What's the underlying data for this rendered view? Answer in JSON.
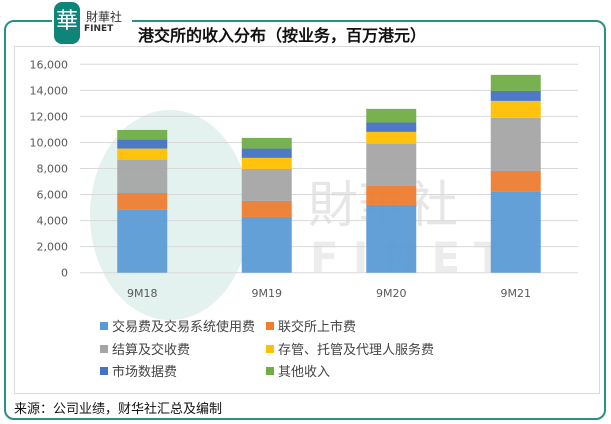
{
  "logo": {
    "cn": "財華社",
    "en": "FINET",
    "mark": "華"
  },
  "watermark": {
    "cn": "財華社",
    "en": "FINET"
  },
  "chart_data": {
    "type": "bar",
    "stacked": true,
    "title": "港交所的收入分布（按业务，百万港元）",
    "categories": [
      "9M18",
      "9M19",
      "9M20",
      "9M21"
    ],
    "ylim": [
      0,
      16000
    ],
    "yticks": [
      "0",
      "2,000",
      "4,000",
      "6,000",
      "8,000",
      "10,000",
      "12,000",
      "14,000",
      "16,000"
    ],
    "grid": true,
    "legend_position": "bottom",
    "series": [
      {
        "name": "交易费及交易系统使用费",
        "color": "#5b9bd5",
        "values": [
          4840,
          4280,
          5200,
          6200
        ]
      },
      {
        "name": "联交所上市费",
        "color": "#ed7d31",
        "values": [
          1280,
          1230,
          1460,
          1610
        ]
      },
      {
        "name": "结算及交收费",
        "color": "#a5a5a5",
        "values": [
          2560,
          2460,
          3250,
          4070
        ]
      },
      {
        "name": "存管、托管及代理人服务费",
        "color": "#ffc000",
        "values": [
          850,
          845,
          900,
          1310
        ]
      },
      {
        "name": "市场数据费",
        "color": "#4472c4",
        "values": [
          690,
          717,
          720,
          770
        ]
      },
      {
        "name": "其他收入",
        "color": "#70ad47",
        "values": [
          740,
          820,
          1050,
          1230
        ]
      }
    ]
  },
  "source": "来源：公司业绩，财华社汇总及编制"
}
